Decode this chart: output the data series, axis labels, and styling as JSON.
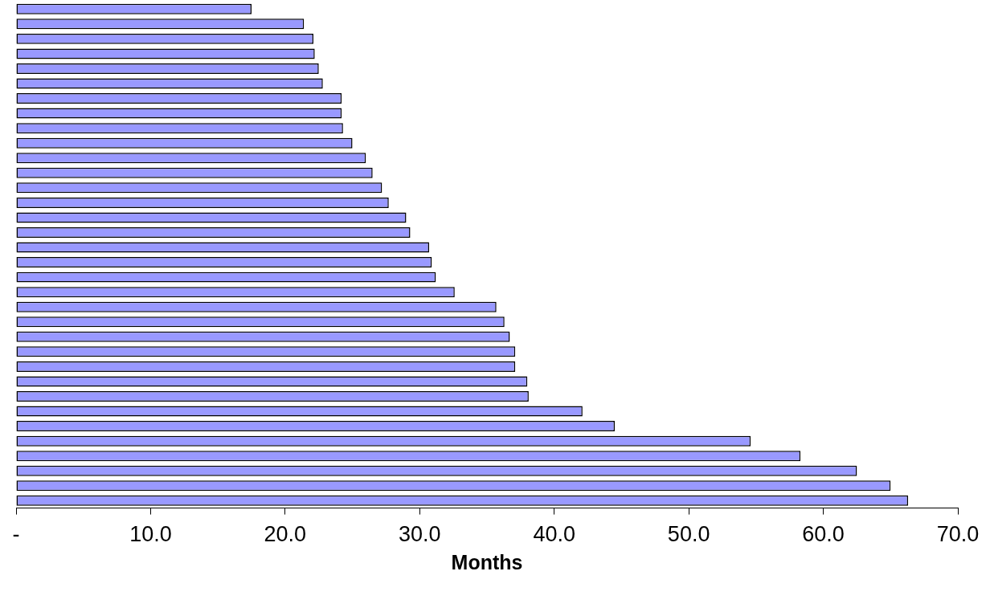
{
  "chart_data": {
    "type": "bar",
    "orientation": "horizontal",
    "xlabel": "Months",
    "categories": [
      null,
      null,
      null,
      null,
      null,
      null,
      null,
      null,
      null,
      null,
      null,
      null,
      null,
      null,
      null,
      null,
      null,
      null,
      null,
      null,
      null,
      null,
      null,
      null,
      null,
      null,
      null,
      null,
      null,
      null,
      null,
      null,
      null,
      null
    ],
    "values": [
      17.5,
      21.4,
      22.1,
      22.2,
      22.5,
      22.8,
      24.2,
      24.2,
      24.3,
      25.0,
      26.0,
      26.5,
      27.2,
      27.7,
      29.0,
      29.3,
      30.7,
      30.9,
      31.2,
      32.6,
      35.7,
      36.3,
      36.7,
      37.1,
      37.1,
      38.0,
      38.1,
      42.1,
      44.5,
      54.6,
      58.3,
      62.5,
      65.0,
      66.3
    ],
    "color": "#9999ff",
    "xlim": [
      0,
      70
    ],
    "xticks": [
      {
        "value": 0,
        "label": "-"
      },
      {
        "value": 10,
        "label": "10.0"
      },
      {
        "value": 20,
        "label": "20.0"
      },
      {
        "value": 30,
        "label": "30.0"
      },
      {
        "value": 40,
        "label": "40.0"
      },
      {
        "value": 50,
        "label": "50.0"
      },
      {
        "value": 60,
        "label": "60.0"
      },
      {
        "value": 70,
        "label": "70.0"
      }
    ],
    "tick_labels": "x",
    "grid": false,
    "legend": false
  }
}
